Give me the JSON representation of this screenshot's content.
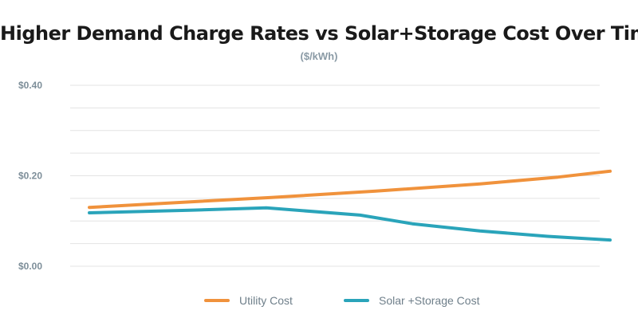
{
  "chart_data": {
    "type": "line",
    "title": "Higher Demand Charge Rates vs Solar+Storage Cost Over Time",
    "subtitle": "($/kWh)",
    "ylim": [
      0,
      0.4
    ],
    "yticks": [
      {
        "value": 0.0,
        "label": "$0.00"
      },
      {
        "value": 0.2,
        "label": "$0.20"
      },
      {
        "value": 0.4,
        "label": "$0.40"
      }
    ],
    "grid": true,
    "legend_position": "bottom",
    "series": [
      {
        "name": "Utility Cost",
        "color": "#f0923c",
        "points": [
          [
            0.0,
            0.13
          ],
          [
            0.35,
            0.152
          ],
          [
            0.55,
            0.166
          ],
          [
            0.75,
            0.182
          ],
          [
            0.9,
            0.197
          ],
          [
            1.0,
            0.21
          ]
        ]
      },
      {
        "name": "Solar +Storage Cost",
        "color": "#2aa4ba",
        "points": [
          [
            0.0,
            0.118
          ],
          [
            0.2,
            0.124
          ],
          [
            0.34,
            0.129
          ],
          [
            0.52,
            0.113
          ],
          [
            0.62,
            0.094
          ],
          [
            0.75,
            0.078
          ],
          [
            0.88,
            0.066
          ],
          [
            1.0,
            0.058
          ]
        ]
      }
    ]
  }
}
